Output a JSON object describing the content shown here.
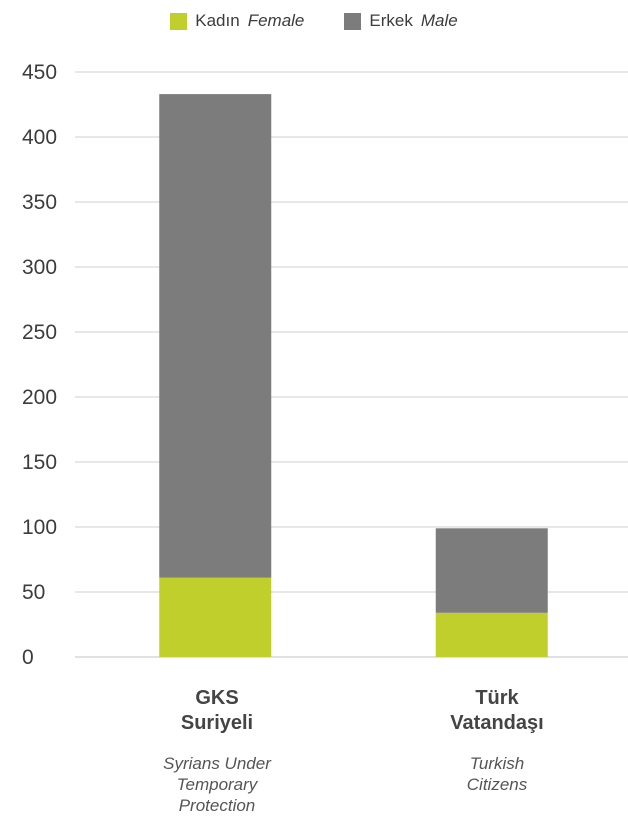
{
  "legend": {
    "female_tr": "Kadın",
    "female_en": "Female",
    "male_tr": "Erkek",
    "male_en": "Male"
  },
  "colors": {
    "female": "#c0cf2b",
    "male": "#7b7c7b",
    "grid": "#cfcfcf",
    "text": "#3c3c3c"
  },
  "chart_data": {
    "type": "bar",
    "stacked": true,
    "categories": [
      "GKS Suriyeli",
      "Türk Vatandaşı"
    ],
    "category_labels": [
      {
        "tr_line1": "GKS",
        "tr_line2": "Suriyeli",
        "en_line1": "Syrians Under",
        "en_line2": "Temporary",
        "en_line3": "Protection"
      },
      {
        "tr_line1": "Türk",
        "tr_line2": "Vatandaşı",
        "en_line1": "Turkish",
        "en_line2": "Citizens",
        "en_line3": ""
      }
    ],
    "series": [
      {
        "name": "Kadın Female",
        "values": [
          61,
          34
        ]
      },
      {
        "name": "Erkek Male",
        "values": [
          372,
          65
        ]
      }
    ],
    "ylim": [
      0,
      450
    ],
    "yticks": [
      0,
      50,
      100,
      150,
      200,
      250,
      300,
      350,
      400,
      450
    ],
    "grid": true,
    "legend_position": "top-center",
    "title": "",
    "xlabel": "",
    "ylabel": ""
  }
}
